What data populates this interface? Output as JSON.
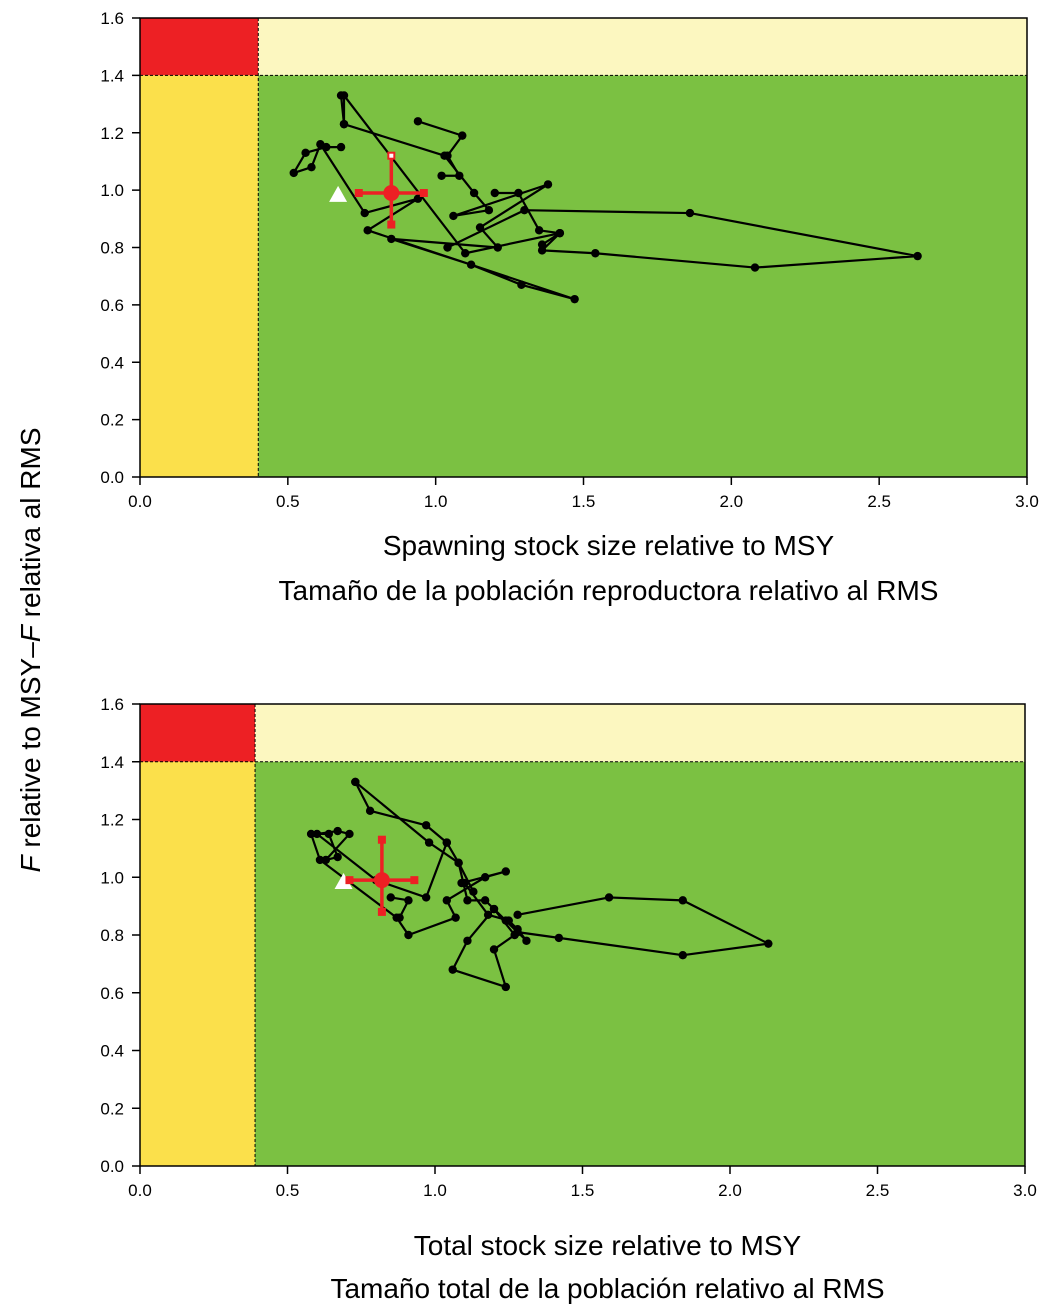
{
  "figure": {
    "ylabel_italic": "F",
    "ylabel_rest": " relative to MSY–",
    "ylabel_italic2": "F",
    "ylabel_rest2": " relativa al RMS"
  },
  "chart_data": [
    {
      "type": "scatter",
      "xlabel": [
        "Spawning stock size relative to MSY",
        "Tamaño de la población reproductora relativo al RMS"
      ],
      "ylabel": "F relative to MSY–F relativa al RMS",
      "xlim": [
        0,
        3.0
      ],
      "ylim": [
        0,
        1.6
      ],
      "xticks": [
        "0.0",
        "0.5",
        "1.0",
        "1.5",
        "2.0",
        "2.5",
        "3.0"
      ],
      "yticks": [
        "0.0",
        "0.2",
        "0.4",
        "0.6",
        "0.8",
        "1.0",
        "1.2",
        "1.4",
        "1.6"
      ],
      "zones": {
        "x_ref": 0.4,
        "y_ref": 1.4
      },
      "colors": {
        "red": "#ed2024",
        "yellow": "#fbe04b",
        "pale": "#fcf7c0",
        "green": "#7bc142"
      },
      "trajectory": [
        [
          0.68,
          1.33
        ],
        [
          0.69,
          1.23
        ],
        [
          1.03,
          1.12
        ],
        [
          1.13,
          0.99
        ],
        [
          1.18,
          0.93
        ],
        [
          1.06,
          0.91
        ],
        [
          1.38,
          1.02
        ],
        [
          1.15,
          0.87
        ],
        [
          1.21,
          0.8
        ],
        [
          0.85,
          0.83
        ],
        [
          1.12,
          0.74
        ],
        [
          1.29,
          0.67
        ],
        [
          1.47,
          0.62
        ],
        [
          0.77,
          0.86
        ],
        [
          0.94,
          0.97
        ],
        [
          0.76,
          0.92
        ],
        [
          0.61,
          1.16
        ],
        [
          0.58,
          1.08
        ],
        [
          0.52,
          1.06
        ],
        [
          0.56,
          1.13
        ],
        [
          0.63,
          1.15
        ],
        [
          0.68,
          1.15
        ]
      ],
      "trajectory_b": [
        [
          1.04,
          0.8
        ],
        [
          1.3,
          0.93
        ],
        [
          1.86,
          0.92
        ],
        [
          2.63,
          0.77
        ],
        [
          2.08,
          0.73
        ],
        [
          1.54,
          0.78
        ],
        [
          1.36,
          0.79
        ],
        [
          1.42,
          0.85
        ],
        [
          1.1,
          0.78
        ],
        [
          0.69,
          1.33
        ],
        [
          0.69,
          1.23
        ]
      ],
      "trajectory_c": [
        [
          1.02,
          1.05
        ],
        [
          1.08,
          1.05
        ],
        [
          1.04,
          1.12
        ],
        [
          1.09,
          1.19
        ],
        [
          0.94,
          1.24
        ]
      ],
      "trajectory_d": [
        [
          1.2,
          0.99
        ],
        [
          1.28,
          0.99
        ],
        [
          1.35,
          0.86
        ],
        [
          1.42,
          0.85
        ],
        [
          1.36,
          0.81
        ]
      ],
      "current": {
        "x": 0.85,
        "y": 0.99,
        "x_ci": [
          0.74,
          0.96
        ],
        "y_ci": [
          0.88,
          1.12
        ]
      },
      "start_marker": {
        "x": 0.67,
        "y": 0.98
      }
    },
    {
      "type": "scatter",
      "xlabel": [
        "Total stock size relative to MSY",
        "Tamaño total de la población relativo al RMS"
      ],
      "ylabel": "F relative to MSY–F relativa al RMS",
      "xlim": [
        0,
        3.0
      ],
      "ylim": [
        0,
        1.6
      ],
      "xticks": [
        "0.0",
        "0.5",
        "1.0",
        "1.5",
        "2.0",
        "2.5",
        "3.0"
      ],
      "yticks": [
        "0.0",
        "0.2",
        "0.4",
        "0.6",
        "0.8",
        "1.0",
        "1.2",
        "1.4",
        "1.6"
      ],
      "zones": {
        "x_ref": 0.39,
        "y_ref": 1.4
      },
      "colors": {
        "red": "#ed2024",
        "yellow": "#fbe04b",
        "pale": "#fcf7c0",
        "green": "#7bc142"
      },
      "trajectory": [
        [
          0.73,
          1.33
        ],
        [
          0.78,
          1.23
        ],
        [
          0.97,
          1.18
        ],
        [
          1.04,
          1.12
        ],
        [
          0.97,
          0.93
        ],
        [
          0.8,
          0.99
        ],
        [
          0.6,
          1.15
        ],
        [
          0.67,
          1.16
        ],
        [
          0.71,
          1.15
        ],
        [
          0.63,
          1.06
        ],
        [
          0.67,
          1.07
        ],
        [
          0.64,
          1.15
        ],
        [
          0.58,
          1.15
        ],
        [
          0.61,
          1.06
        ],
        [
          0.87,
          0.86
        ],
        [
          0.91,
          0.8
        ],
        [
          1.07,
          0.86
        ],
        [
          1.04,
          0.92
        ],
        [
          1.17,
          1.0
        ],
        [
          1.24,
          1.02
        ],
        [
          1.09,
          0.98
        ],
        [
          1.1,
          0.98
        ],
        [
          1.18,
          0.87
        ],
        [
          1.25,
          0.85
        ],
        [
          1.28,
          0.82
        ],
        [
          1.31,
          0.78
        ],
        [
          1.2,
          0.89
        ],
        [
          1.27,
          0.8
        ],
        [
          1.2,
          0.75
        ],
        [
          1.24,
          0.62
        ],
        [
          1.06,
          0.68
        ],
        [
          1.11,
          0.78
        ],
        [
          1.2,
          0.89
        ],
        [
          1.17,
          0.92
        ],
        [
          1.11,
          0.92
        ],
        [
          1.08,
          1.05
        ],
        [
          0.98,
          1.12
        ],
        [
          0.73,
          1.33
        ]
      ],
      "trajectory_b": [
        [
          1.28,
          0.87
        ],
        [
          1.59,
          0.93
        ],
        [
          1.84,
          0.92
        ],
        [
          2.13,
          0.77
        ],
        [
          1.84,
          0.73
        ],
        [
          1.42,
          0.79
        ],
        [
          1.28,
          0.81
        ],
        [
          1.24,
          0.85
        ]
      ],
      "trajectory_c": [
        [
          1.04,
          1.12
        ],
        [
          1.08,
          1.05
        ],
        [
          1.13,
          0.95
        ]
      ],
      "trajectory_d": [
        [
          0.85,
          0.93
        ],
        [
          0.91,
          0.92
        ],
        [
          0.88,
          0.86
        ]
      ],
      "current": {
        "x": 0.82,
        "y": 0.99,
        "x_ci": [
          0.71,
          0.93
        ],
        "y_ci": [
          0.88,
          1.13
        ]
      },
      "start_marker": {
        "x": 0.69,
        "y": 0.98
      }
    }
  ]
}
